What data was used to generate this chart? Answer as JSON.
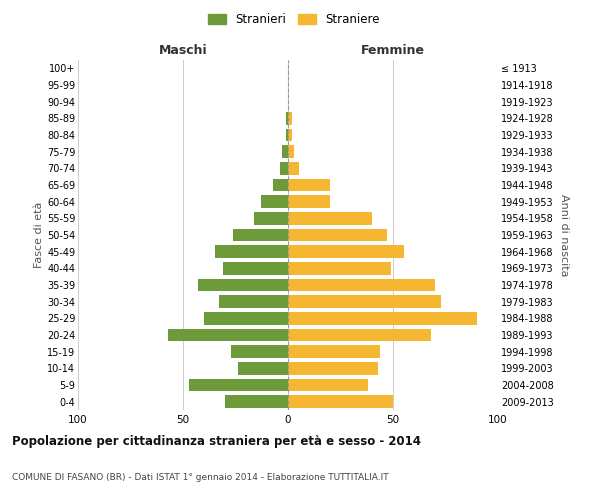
{
  "age_groups_bottom_to_top": [
    "0-4",
    "5-9",
    "10-14",
    "15-19",
    "20-24",
    "25-29",
    "30-34",
    "35-39",
    "40-44",
    "45-49",
    "50-54",
    "55-59",
    "60-64",
    "65-69",
    "70-74",
    "75-79",
    "80-84",
    "85-89",
    "90-94",
    "95-99",
    "100+"
  ],
  "birth_years_bottom_to_top": [
    "2009-2013",
    "2004-2008",
    "1999-2003",
    "1994-1998",
    "1989-1993",
    "1984-1988",
    "1979-1983",
    "1974-1978",
    "1969-1973",
    "1964-1968",
    "1959-1963",
    "1954-1958",
    "1949-1953",
    "1944-1948",
    "1939-1943",
    "1934-1938",
    "1929-1933",
    "1924-1928",
    "1919-1923",
    "1914-1918",
    "≤ 1913"
  ],
  "maschi_bottom_to_top": [
    30,
    47,
    24,
    27,
    57,
    40,
    33,
    43,
    31,
    35,
    26,
    16,
    13,
    7,
    4,
    3,
    1,
    1,
    0,
    0,
    0
  ],
  "femmine_bottom_to_top": [
    50,
    38,
    43,
    44,
    68,
    90,
    73,
    70,
    49,
    55,
    47,
    40,
    20,
    20,
    5,
    3,
    2,
    2,
    0,
    0,
    0
  ],
  "color_maschi": "#6d9b3a",
  "color_femmine": "#f5b731",
  "background_color": "#ffffff",
  "grid_color": "#cccccc",
  "title": "Popolazione per cittadinanza straniera per età e sesso - 2014",
  "subtitle": "COMUNE DI FASANO (BR) - Dati ISTAT 1° gennaio 2014 - Elaborazione TUTTITALIA.IT",
  "xlabel_left": "Maschi",
  "xlabel_right": "Femmine",
  "ylabel_left": "Fasce di età",
  "ylabel_right": "Anni di nascita",
  "legend_maschi": "Stranieri",
  "legend_femmine": "Straniere",
  "xlim": 100,
  "bar_height": 0.75
}
